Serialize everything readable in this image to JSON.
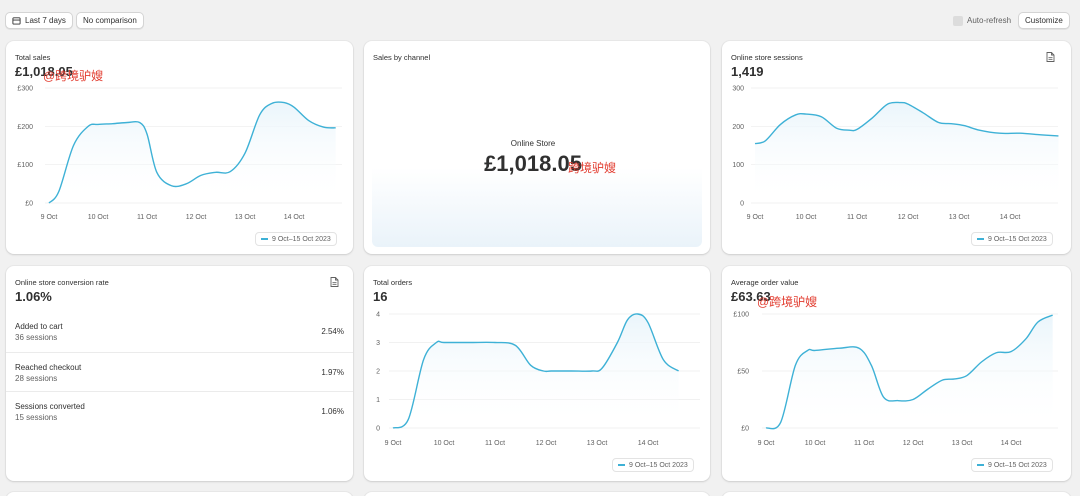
{
  "toolbar": {
    "date_range_label": "Last 7 days",
    "comparison_label": "No comparison",
    "auto_refresh_label": "Auto-refresh",
    "customize_label": "Customize"
  },
  "colors": {
    "line": "#3eb1d6",
    "area": "#eaf5fb",
    "grid": "#ececec",
    "axis_text": "#616161"
  },
  "watermark_text": "@跨境驴嫂",
  "watermark_text_short": "跨境驴嫂",
  "legend_label": "9 Oct–15 Oct 2023",
  "x_ticks": [
    "9 Oct",
    "10 Oct",
    "11 Oct",
    "12 Oct",
    "13 Oct",
    "14 Oct"
  ],
  "cards": {
    "total_sales": {
      "title": "Total sales",
      "value": "£1,018.05"
    },
    "sales_by_channel": {
      "title": "Sales by channel",
      "channel_label": "Online Store",
      "channel_value": "£1,018.05"
    },
    "sessions": {
      "title": "Online store sessions",
      "value": "1,419"
    },
    "conversion": {
      "title": "Online store conversion rate",
      "value": "1.06%",
      "rows": [
        {
          "label": "Added to cart",
          "sub": "36 sessions",
          "pct": "2.54%"
        },
        {
          "label": "Reached checkout",
          "sub": "28 sessions",
          "pct": "1.97%"
        },
        {
          "label": "Sessions converted",
          "sub": "15 sessions",
          "pct": "1.06%"
        }
      ]
    },
    "orders": {
      "title": "Total orders",
      "value": "16"
    },
    "aov": {
      "title": "Average order value",
      "value": "£63.63"
    }
  },
  "chart_data": [
    {
      "type": "line",
      "chart": "total_sales",
      "x": [
        0,
        0.2,
        0.5,
        0.8,
        1.0,
        1.3,
        1.6,
        1.85,
        2.0,
        2.2,
        2.5,
        2.8,
        3.1,
        3.4,
        3.7,
        4.0,
        4.3,
        4.55,
        4.8,
        5.0,
        5.3,
        5.6,
        5.85
      ],
      "values": [
        0,
        30,
        150,
        200,
        205,
        207,
        210,
        210,
        180,
        80,
        45,
        50,
        72,
        80,
        82,
        130,
        230,
        260,
        262,
        250,
        215,
        198,
        196
      ],
      "ylim": [
        0,
        300
      ],
      "y_ticks": [
        "£0",
        "£100",
        "£200",
        "£300"
      ],
      "y_tick_values": [
        0,
        100,
        200,
        300
      ],
      "series_label": "9 Oct–15 Oct 2023"
    },
    {
      "type": "line",
      "chart": "sessions",
      "x": [
        0,
        0.2,
        0.5,
        0.8,
        1.0,
        1.3,
        1.6,
        1.85,
        2.0,
        2.3,
        2.6,
        2.85,
        3.0,
        3.3,
        3.6,
        3.85,
        4.1,
        4.4,
        4.8,
        5.2,
        5.6,
        5.95
      ],
      "values": [
        155,
        162,
        205,
        230,
        232,
        225,
        195,
        190,
        192,
        222,
        258,
        262,
        258,
        235,
        210,
        207,
        202,
        190,
        182,
        182,
        178,
        175
      ],
      "ylim": [
        0,
        300
      ],
      "y_ticks": [
        "0",
        "100",
        "200",
        "300"
      ],
      "y_tick_values": [
        0,
        100,
        200,
        300
      ],
      "series_label": "9 Oct–15 Oct 2023"
    },
    {
      "type": "line",
      "chart": "orders",
      "x": [
        0,
        0.3,
        0.6,
        0.85,
        1.0,
        1.5,
        2.0,
        2.4,
        2.7,
        2.95,
        3.1,
        3.5,
        3.9,
        4.1,
        4.4,
        4.6,
        4.8,
        5.0,
        5.3,
        5.6
      ],
      "values": [
        0,
        0.3,
        2.4,
        3.0,
        3.0,
        3.0,
        3.0,
        2.9,
        2.2,
        2.0,
        2.0,
        2.0,
        2.0,
        2.1,
        3.0,
        3.8,
        4.0,
        3.7,
        2.4,
        2.0
      ],
      "ylim": [
        0,
        4
      ],
      "y_ticks": [
        "0",
        "1",
        "2",
        "3",
        "4"
      ],
      "y_tick_values": [
        0,
        1,
        2,
        3,
        4
      ],
      "series_label": "9 Oct–15 Oct 2023"
    },
    {
      "type": "line",
      "chart": "aov",
      "x": [
        0,
        0.3,
        0.6,
        0.85,
        1.0,
        1.5,
        1.9,
        2.15,
        2.4,
        2.7,
        3.0,
        3.3,
        3.6,
        3.85,
        4.1,
        4.4,
        4.7,
        5.0,
        5.3,
        5.55,
        5.85
      ],
      "values": [
        0,
        5,
        55,
        68,
        68,
        70,
        70,
        55,
        27,
        24,
        25,
        34,
        42,
        43,
        46,
        58,
        66,
        67,
        78,
        93,
        99
      ],
      "ylim": [
        0,
        100
      ],
      "y_ticks": [
        "£0",
        "£50",
        "£100"
      ],
      "y_tick_values": [
        0,
        50,
        100
      ],
      "series_label": "9 Oct–15 Oct 2023"
    }
  ]
}
